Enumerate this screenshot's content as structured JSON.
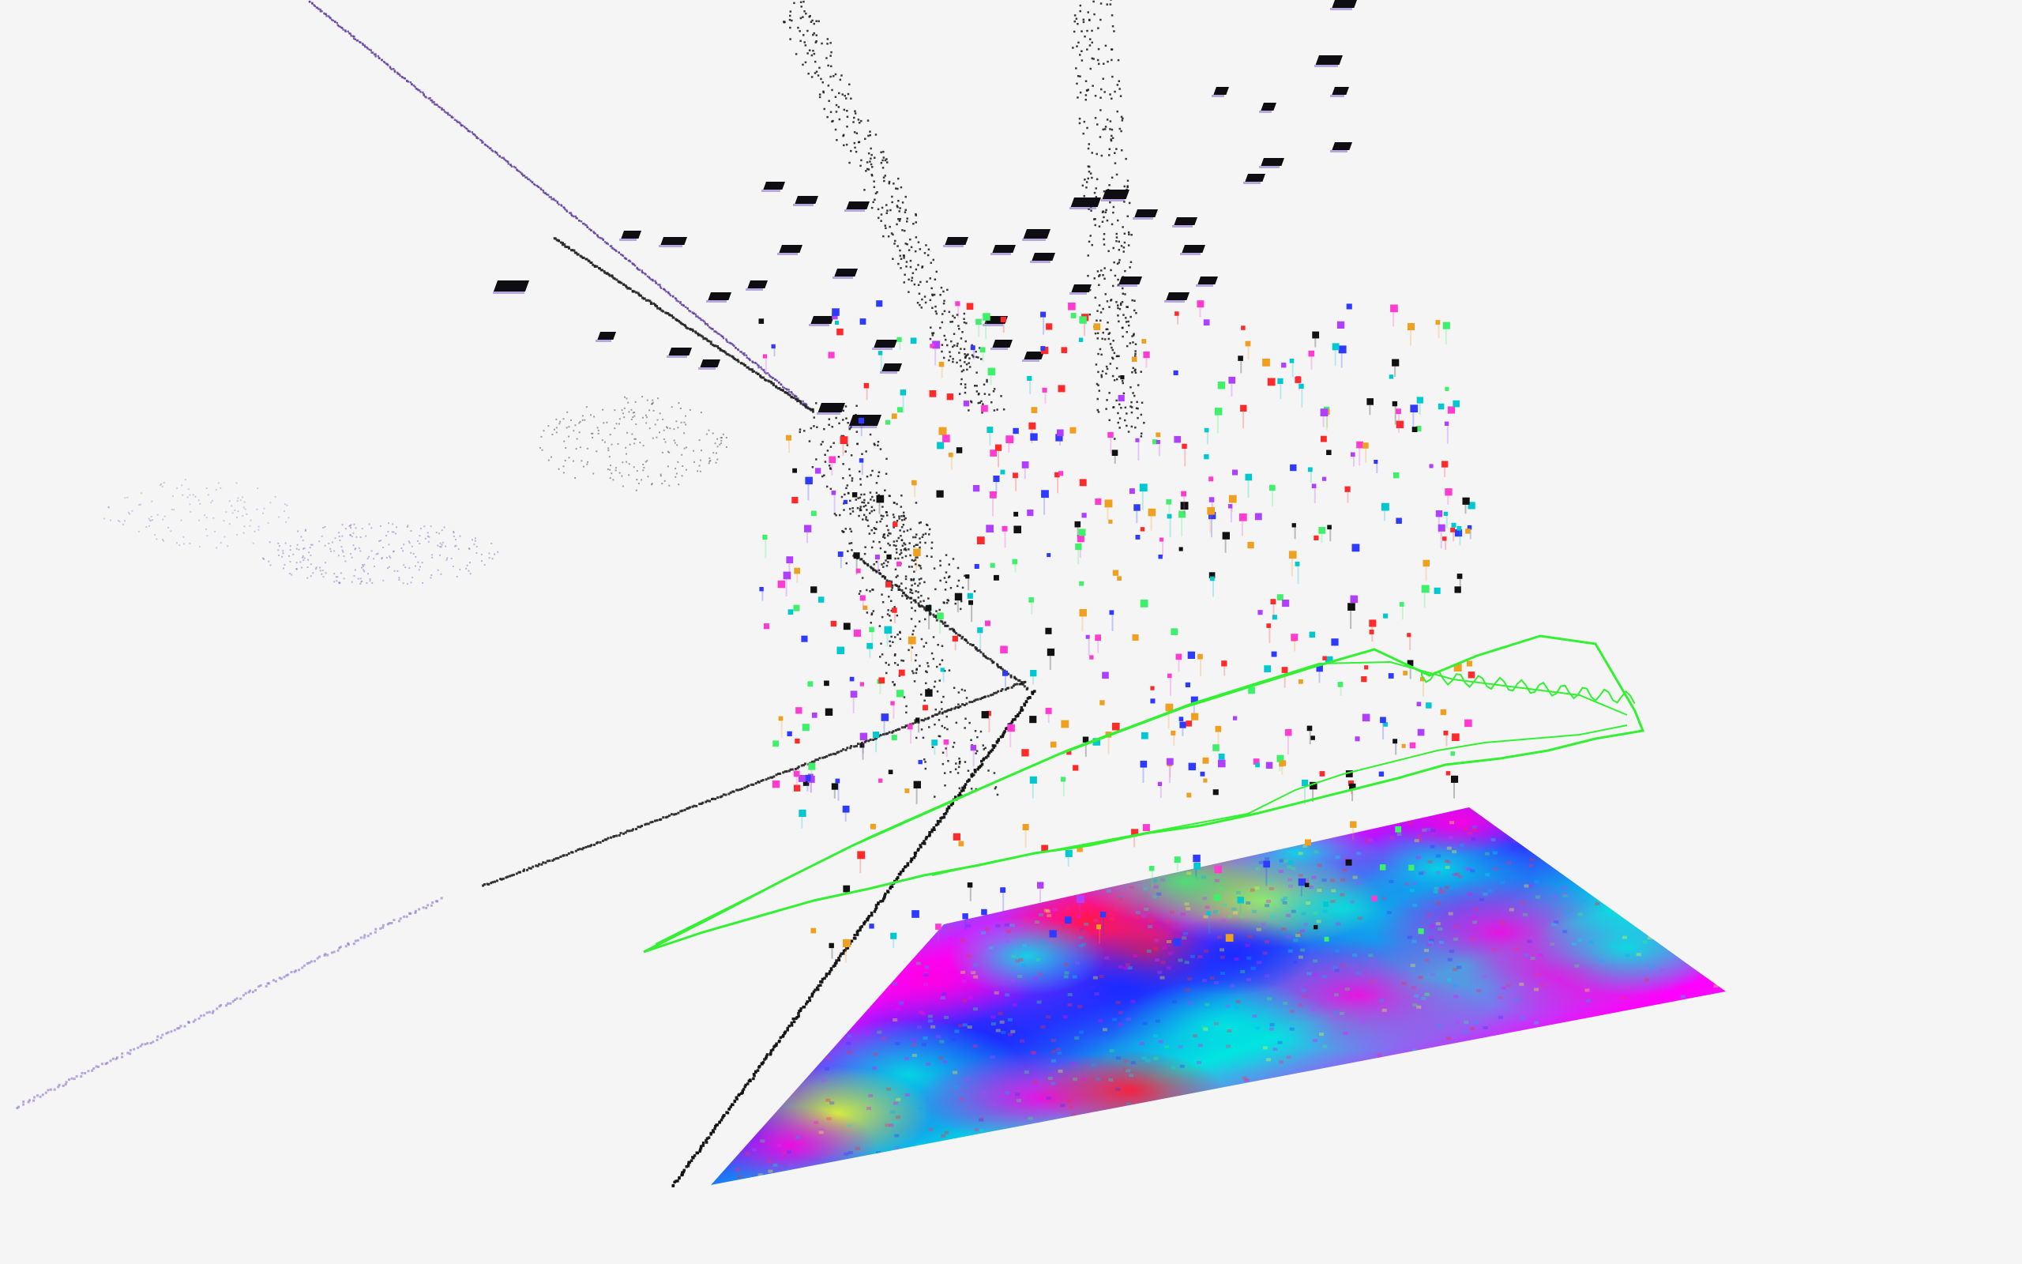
{
  "scene": {
    "background": "#f5f5f6",
    "point_cloud_color": "#1a1a1a",
    "distant_point_color": "#5b3a9e",
    "trajectory_color": "#33f033",
    "heatmap_palette": [
      "#ff2a6d",
      "#ff00ff",
      "#c040ff",
      "#2f3aff",
      "#00b0ff",
      "#00e5e0",
      "#3ef06a",
      "#f5ff2a",
      "#ff2a2a"
    ],
    "marker_palette": [
      "#ff3bd0",
      "#2f3aff",
      "#3ef06a",
      "#ff2a2a",
      "#b040ff",
      "#00c8d0",
      "#111111",
      "#f0a020"
    ]
  }
}
